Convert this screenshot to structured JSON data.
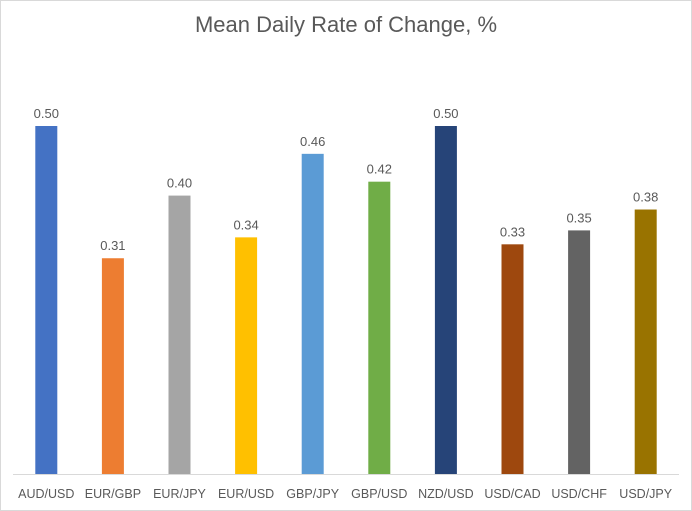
{
  "chart_data": {
    "type": "bar",
    "title": "Mean Daily Rate of Change, %",
    "xlabel": "",
    "ylabel": "",
    "categories": [
      "AUD/USD",
      "EUR/GBP",
      "EUR/JPY",
      "EUR/USD",
      "GBP/JPY",
      "GBP/USD",
      "NZD/USD",
      "USD/CAD",
      "USD/CHF",
      "USD/JPY"
    ],
    "values": [
      0.5,
      0.31,
      0.4,
      0.34,
      0.46,
      0.42,
      0.5,
      0.33,
      0.35,
      0.38
    ],
    "data_labels": [
      "0.50",
      "0.31",
      "0.40",
      "0.34",
      "0.46",
      "0.42",
      "0.50",
      "0.33",
      "0.35",
      "0.38"
    ],
    "colors": [
      "#4472c4",
      "#ed7d31",
      "#a5a5a5",
      "#ffc000",
      "#5b9bd5",
      "#70ad47",
      "#264478",
      "#9e480e",
      "#636363",
      "#997300"
    ],
    "ylim": [
      0,
      0.5
    ],
    "grid": false,
    "legend": "none"
  }
}
